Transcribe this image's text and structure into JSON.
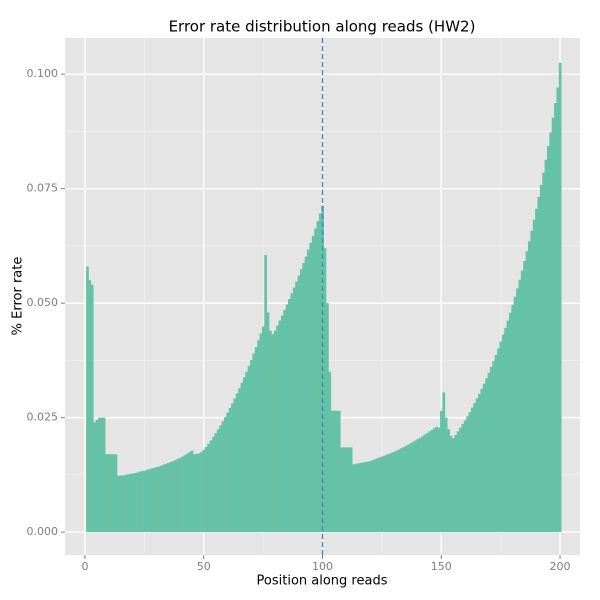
{
  "chart_data": {
    "type": "bar",
    "title": "Error rate distribution along reads (HW2)",
    "x_label": "Position along reads",
    "y_label": "% Error rate",
    "color": "#66c2a5",
    "vline": {
      "x": 100,
      "color": "#4a7fc1"
    },
    "grid": true,
    "xlim": [
      -8.4,
      208.4
    ],
    "ylim": [
      -0.005,
      0.1079
    ],
    "xticks": [
      0,
      50,
      100,
      150,
      200
    ],
    "yticks": [
      {
        "value": 0,
        "label": "0.000"
      },
      {
        "value": 0.025,
        "label": "0.025"
      },
      {
        "value": 0.05,
        "label": "0.050"
      },
      {
        "value": 0.075,
        "label": "0.075"
      },
      {
        "value": 0.1,
        "label": "0.100"
      }
    ],
    "x": [
      1,
      2,
      3,
      4,
      5,
      6,
      7,
      8,
      9,
      10,
      11,
      12,
      13,
      14,
      15,
      16,
      17,
      18,
      19,
      20,
      21,
      22,
      23,
      24,
      25,
      26,
      27,
      28,
      29,
      30,
      31,
      32,
      33,
      34,
      35,
      36,
      37,
      38,
      39,
      40,
      41,
      42,
      43,
      44,
      45,
      46,
      47,
      48,
      49,
      50,
      51,
      52,
      53,
      54,
      55,
      56,
      57,
      58,
      59,
      60,
      61,
      62,
      63,
      64,
      65,
      66,
      67,
      68,
      69,
      70,
      71,
      72,
      73,
      74,
      75,
      76,
      77,
      78,
      79,
      80,
      81,
      82,
      83,
      84,
      85,
      86,
      87,
      88,
      89,
      90,
      91,
      92,
      93,
      94,
      95,
      96,
      97,
      98,
      99,
      100,
      101,
      102,
      103,
      104,
      105,
      106,
      107,
      108,
      109,
      110,
      111,
      112,
      113,
      114,
      115,
      116,
      117,
      118,
      119,
      120,
      121,
      122,
      123,
      124,
      125,
      126,
      127,
      128,
      129,
      130,
      131,
      132,
      133,
      134,
      135,
      136,
      137,
      138,
      139,
      140,
      141,
      142,
      143,
      144,
      145,
      146,
      147,
      148,
      149,
      150,
      151,
      152,
      153,
      154,
      155,
      156,
      157,
      158,
      159,
      160,
      161,
      162,
      163,
      164,
      165,
      166,
      167,
      168,
      169,
      170,
      171,
      172,
      173,
      174,
      175,
      176,
      177,
      178,
      179,
      180,
      181,
      182,
      183,
      184,
      185,
      186,
      187,
      188,
      189,
      190,
      191,
      192,
      193,
      194,
      195,
      196,
      197,
      198,
      199,
      200
    ],
    "values": [
      0.058,
      0.055,
      0.054,
      0.024,
      0.0245,
      0.025,
      0.025,
      0.025,
      0.017,
      0.017,
      0.017,
      0.017,
      0.017,
      0.0123,
      0.0124,
      0.0124,
      0.0125,
      0.0126,
      0.0127,
      0.0128,
      0.0129,
      0.013,
      0.0132,
      0.0133,
      0.0134,
      0.0136,
      0.0137,
      0.0139,
      0.014,
      0.0142,
      0.0143,
      0.0145,
      0.0147,
      0.0149,
      0.0151,
      0.0153,
      0.0155,
      0.0157,
      0.016,
      0.0162,
      0.0165,
      0.0168,
      0.0171,
      0.0175,
      0.0178,
      0.017,
      0.0171,
      0.0172,
      0.0175,
      0.018,
      0.0186,
      0.0193,
      0.02,
      0.0208,
      0.0216,
      0.0224,
      0.0233,
      0.0242,
      0.0251,
      0.0261,
      0.0271,
      0.0281,
      0.0292,
      0.0303,
      0.0314,
      0.0326,
      0.0338,
      0.035,
      0.0363,
      0.0376,
      0.039,
      0.0404,
      0.0419,
      0.0434,
      0.0449,
      0.0605,
      0.048,
      0.044,
      0.0432,
      0.044,
      0.0451,
      0.0462,
      0.0473,
      0.0485,
      0.0497,
      0.0509,
      0.0521,
      0.0534,
      0.0547,
      0.056,
      0.0574,
      0.0588,
      0.0602,
      0.0617,
      0.0632,
      0.0647,
      0.0663,
      0.0679,
      0.0696,
      0.0713,
      0.062,
      0.05,
      0.035,
      0.0265,
      0.0265,
      0.0265,
      0.0265,
      0.0185,
      0.0185,
      0.0185,
      0.0185,
      0.0185,
      0.0148,
      0.0149,
      0.015,
      0.0151,
      0.0152,
      0.0153,
      0.0154,
      0.0155,
      0.0157,
      0.0159,
      0.0161,
      0.0163,
      0.0165,
      0.0167,
      0.0169,
      0.0171,
      0.0173,
      0.0175,
      0.0178,
      0.018,
      0.0183,
      0.0185,
      0.0188,
      0.0191,
      0.0194,
      0.0197,
      0.02,
      0.0203,
      0.0206,
      0.0209,
      0.0213,
      0.0216,
      0.022,
      0.0223,
      0.0227,
      0.023,
      0.0228,
      0.0265,
      0.0305,
      0.025,
      0.0225,
      0.021,
      0.0205,
      0.0212,
      0.022,
      0.0228,
      0.0236,
      0.0244,
      0.0253,
      0.0262,
      0.0272,
      0.0282,
      0.0292,
      0.0302,
      0.0313,
      0.0324,
      0.0336,
      0.0348,
      0.0361,
      0.0374,
      0.0387,
      0.0401,
      0.0416,
      0.0431,
      0.0446,
      0.0462,
      0.0479,
      0.0496,
      0.0514,
      0.0532,
      0.0551,
      0.0571,
      0.0592,
      0.0613,
      0.0635,
      0.0658,
      0.0682,
      0.0706,
      0.0732,
      0.0758,
      0.0785,
      0.0813,
      0.0843,
      0.0873,
      0.0905,
      0.0937,
      0.0971,
      0.1025
    ]
  }
}
